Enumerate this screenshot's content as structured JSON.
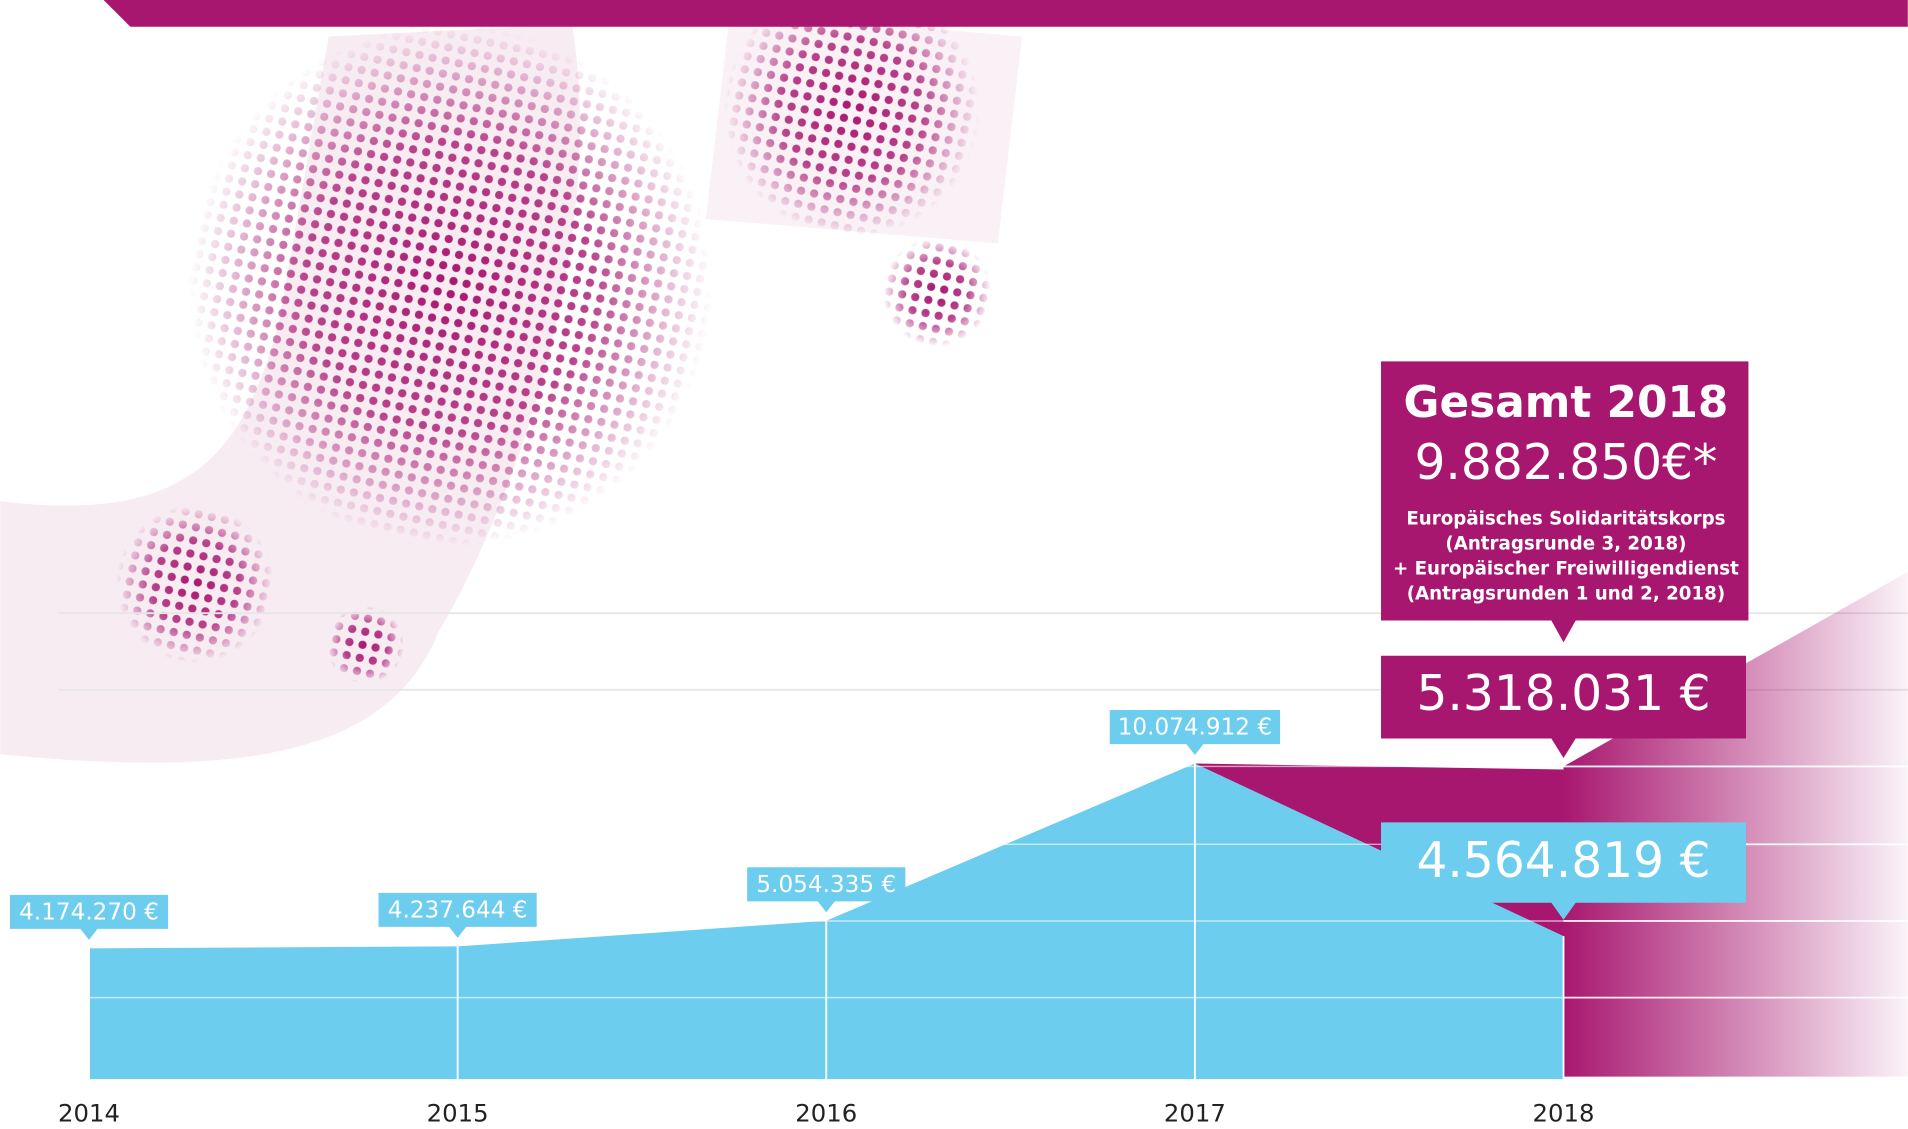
{
  "chart_data": {
    "type": "area",
    "x": [
      "2014",
      "2015",
      "2016",
      "2017",
      "2018"
    ],
    "series": [
      {
        "color": "#6dcdee",
        "values": [
          4174270,
          4237644,
          5054335,
          10074912,
          4564819
        ],
        "value_labels": [
          "4.174.270 €",
          "4.237.644 €",
          "5.054.335 €",
          "10.074.912 €",
          "4.564.819 €"
        ]
      },
      {
        "color": "#a8176f",
        "values": [
          null,
          null,
          null,
          0,
          5318031
        ],
        "value_labels": [
          null,
          null,
          null,
          null,
          "5.318.031 €"
        ]
      }
    ],
    "ylim": [
      0,
      34450000
    ],
    "total_box": {
      "title": "Gesamt 2018",
      "value_label": "9.882.850€*",
      "lines": [
        "Europäisches Solidaritätskorps",
        "(Antragsrunde 3, 2018)",
        "+ Europäischer Freiwilligendienst",
        "(Antragsrunden 1 und 2, 2018)"
      ]
    }
  }
}
